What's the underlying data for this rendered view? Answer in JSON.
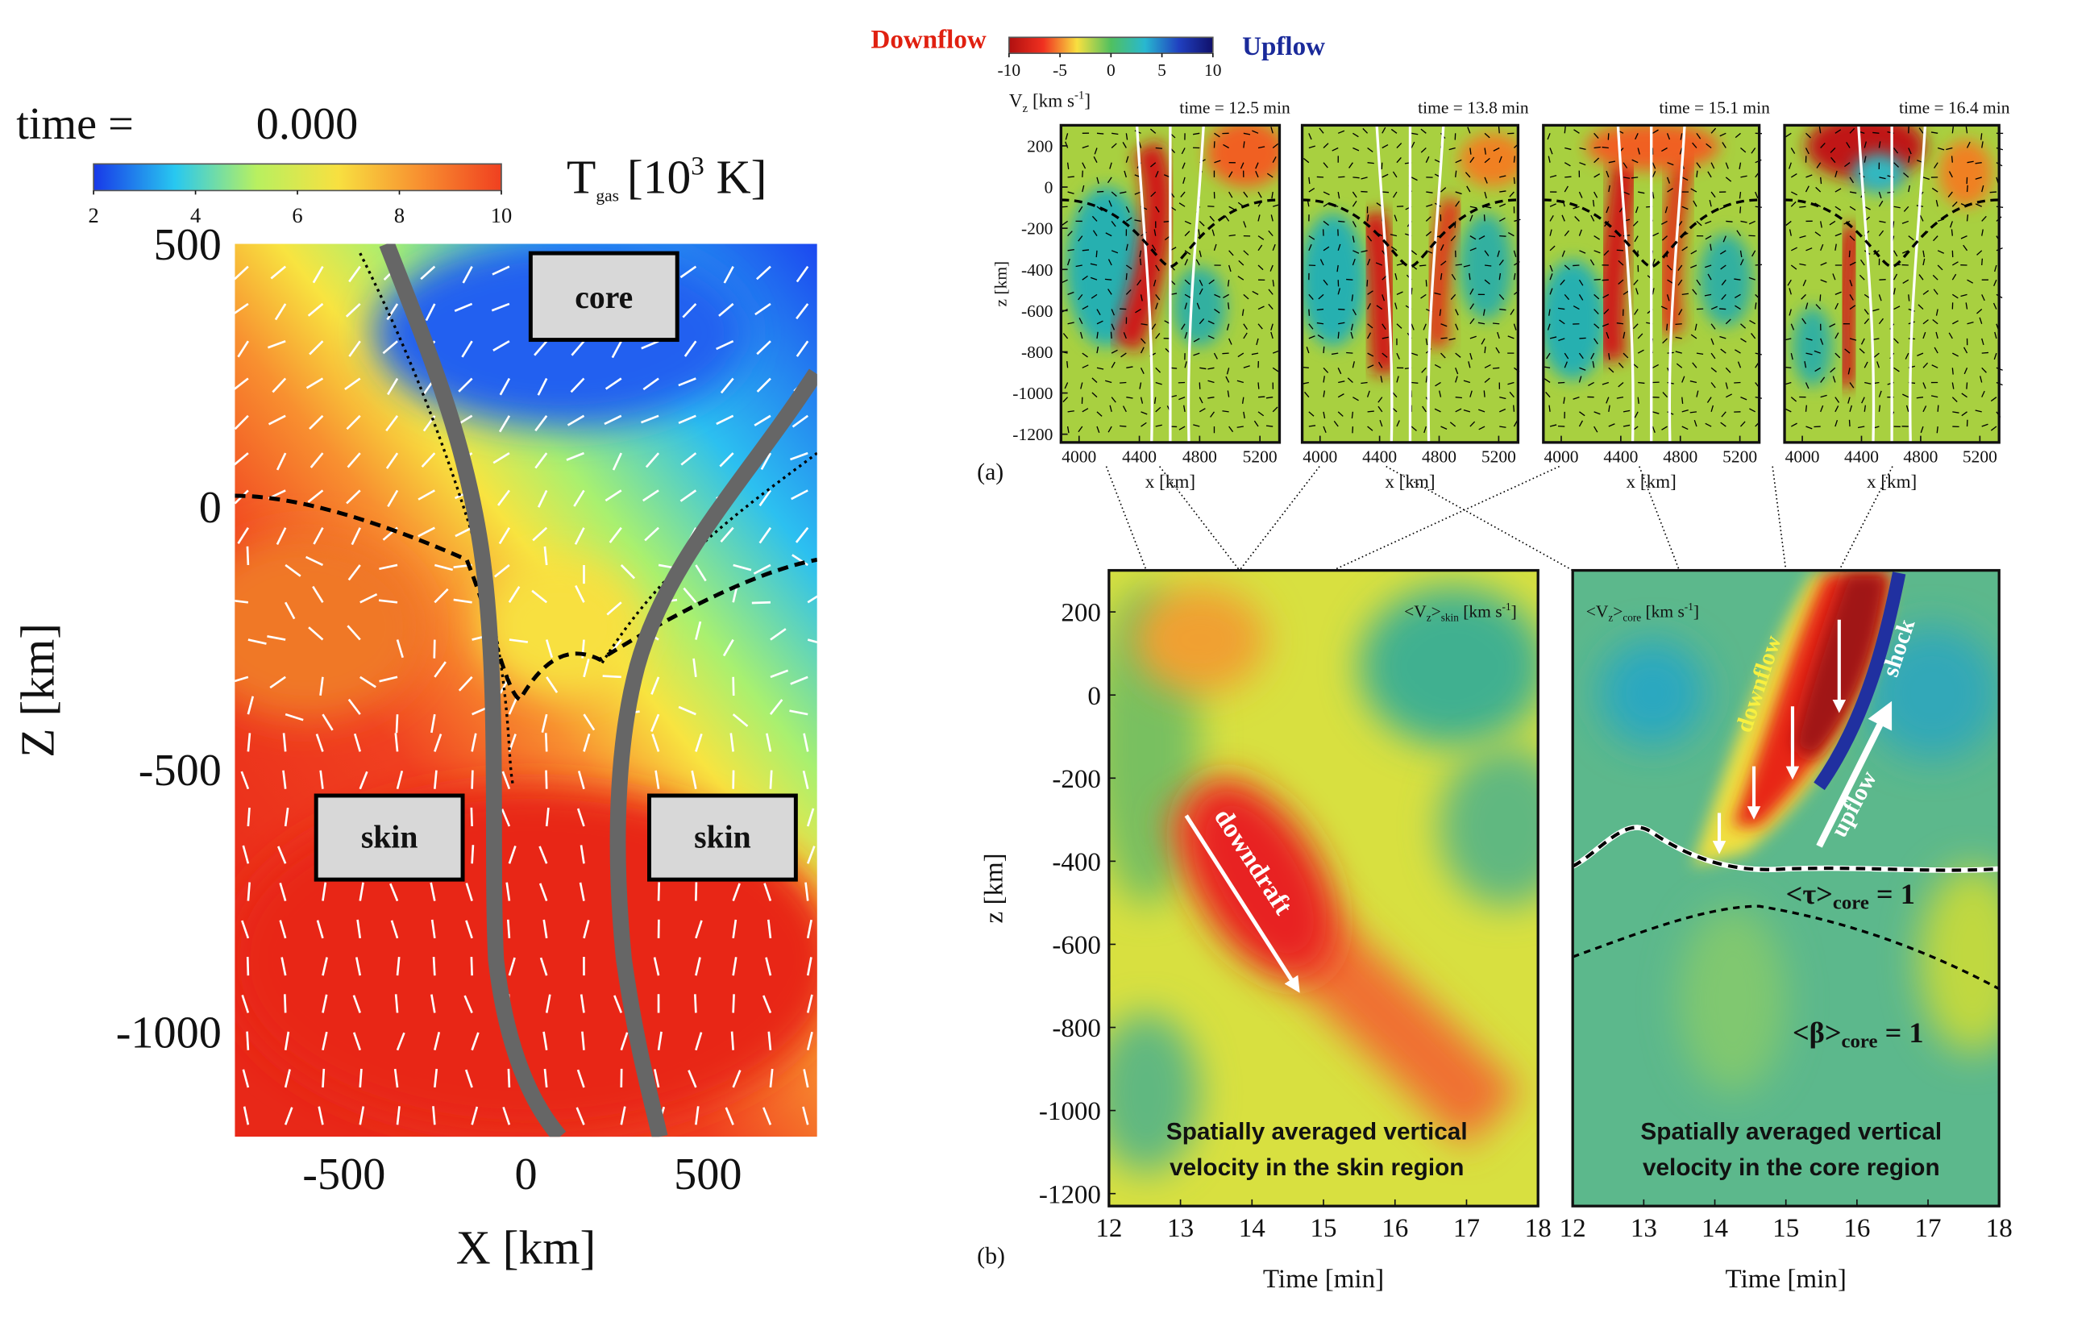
{
  "chart_data": [
    {
      "type": "heatmap",
      "title": "time =",
      "time": "0.000",
      "xlabel": "X [km]",
      "ylabel": "Z [km]",
      "xlim": [
        -800,
        800
      ],
      "ylim": [
        -1200,
        500
      ],
      "xticks": [
        -500,
        0,
        500
      ],
      "yticks": [
        500,
        0,
        -500,
        -1000
      ],
      "colorbar": {
        "label": [
          "T",
          "gas",
          "[10",
          "3",
          " K]"
        ],
        "lim": [
          2,
          10
        ],
        "ticks": [
          2,
          4,
          6,
          8,
          10
        ],
        "colors": [
          "#1838e8",
          "#28c8f0",
          "#b8f060",
          "#f8e040",
          "#f89030",
          "#f04020"
        ]
      },
      "annotations": [
        "core",
        "skin",
        "skin"
      ]
    },
    {
      "type": "colorbar",
      "labels": [
        "Downflow",
        "Upflow"
      ],
      "label": [
        "V",
        "z",
        " [km s",
        "-1",
        "]"
      ],
      "lim": [
        -10,
        10
      ],
      "ticks": [
        -10,
        -5,
        0,
        5,
        10
      ],
      "colors": [
        "#b01010",
        "#f03020",
        "#f8e040",
        "#50c060",
        "#28b8d0",
        "#2040c0",
        "#10106a"
      ]
    },
    {
      "type": "heatmap",
      "panel": "(a)",
      "title": "time = 12.5 min",
      "xlabel": "x [km]",
      "ylabel": "z [km]",
      "xlim": [
        3880,
        5330
      ],
      "ylim": [
        -1240,
        300
      ],
      "xticks": [
        4000,
        4400,
        4800,
        5200
      ],
      "yticks": [
        200,
        0,
        -200,
        -400,
        -600,
        -800,
        -1000,
        -1200
      ]
    },
    {
      "type": "heatmap",
      "title": "time = 13.8 min",
      "xlabel": "x [km]",
      "xlim": [
        3880,
        5330
      ],
      "xticks": [
        4000,
        4400,
        4800,
        5200
      ]
    },
    {
      "type": "heatmap",
      "title": "time = 15.1 min",
      "xlabel": "x [km]",
      "xlim": [
        3880,
        5330
      ],
      "xticks": [
        4000,
        4400,
        4800,
        5200
      ]
    },
    {
      "type": "heatmap",
      "title": "time = 16.4 min",
      "xlabel": "x [km]",
      "xlim": [
        3880,
        5330
      ],
      "xticks": [
        4000,
        4400,
        4800,
        5200
      ]
    },
    {
      "type": "heatmap",
      "panel": "(b)",
      "title": [
        "<V",
        "z",
        ">",
        "skin",
        " [km s",
        "-1",
        "]"
      ],
      "xlabel": "Time [min]",
      "ylabel": "z [km]",
      "xlim": [
        12,
        18
      ],
      "ylim": [
        -1230,
        300
      ],
      "xticks": [
        12,
        13,
        14,
        15,
        16,
        17,
        18
      ],
      "yticks": [
        200,
        0,
        -200,
        -400,
        -600,
        -800,
        -1000,
        -1200
      ],
      "annotations": [
        "downdraft",
        "Spatially averaged vertical",
        "velocity in the skin region"
      ]
    },
    {
      "type": "heatmap",
      "title": [
        "<V",
        "z",
        ">",
        "core",
        " [km s",
        "-1",
        "]"
      ],
      "xlabel": "Time [min]",
      "xlim": [
        12,
        18
      ],
      "xticks": [
        12,
        13,
        14,
        15,
        16,
        17,
        18
      ],
      "annotations": [
        "downflow",
        "shock",
        "upflow",
        [
          "<τ>",
          "core",
          " = 1"
        ],
        [
          "<β>",
          "core",
          " = 1"
        ],
        "Spatially averaged vertical",
        "velocity in the core region"
      ]
    }
  ]
}
